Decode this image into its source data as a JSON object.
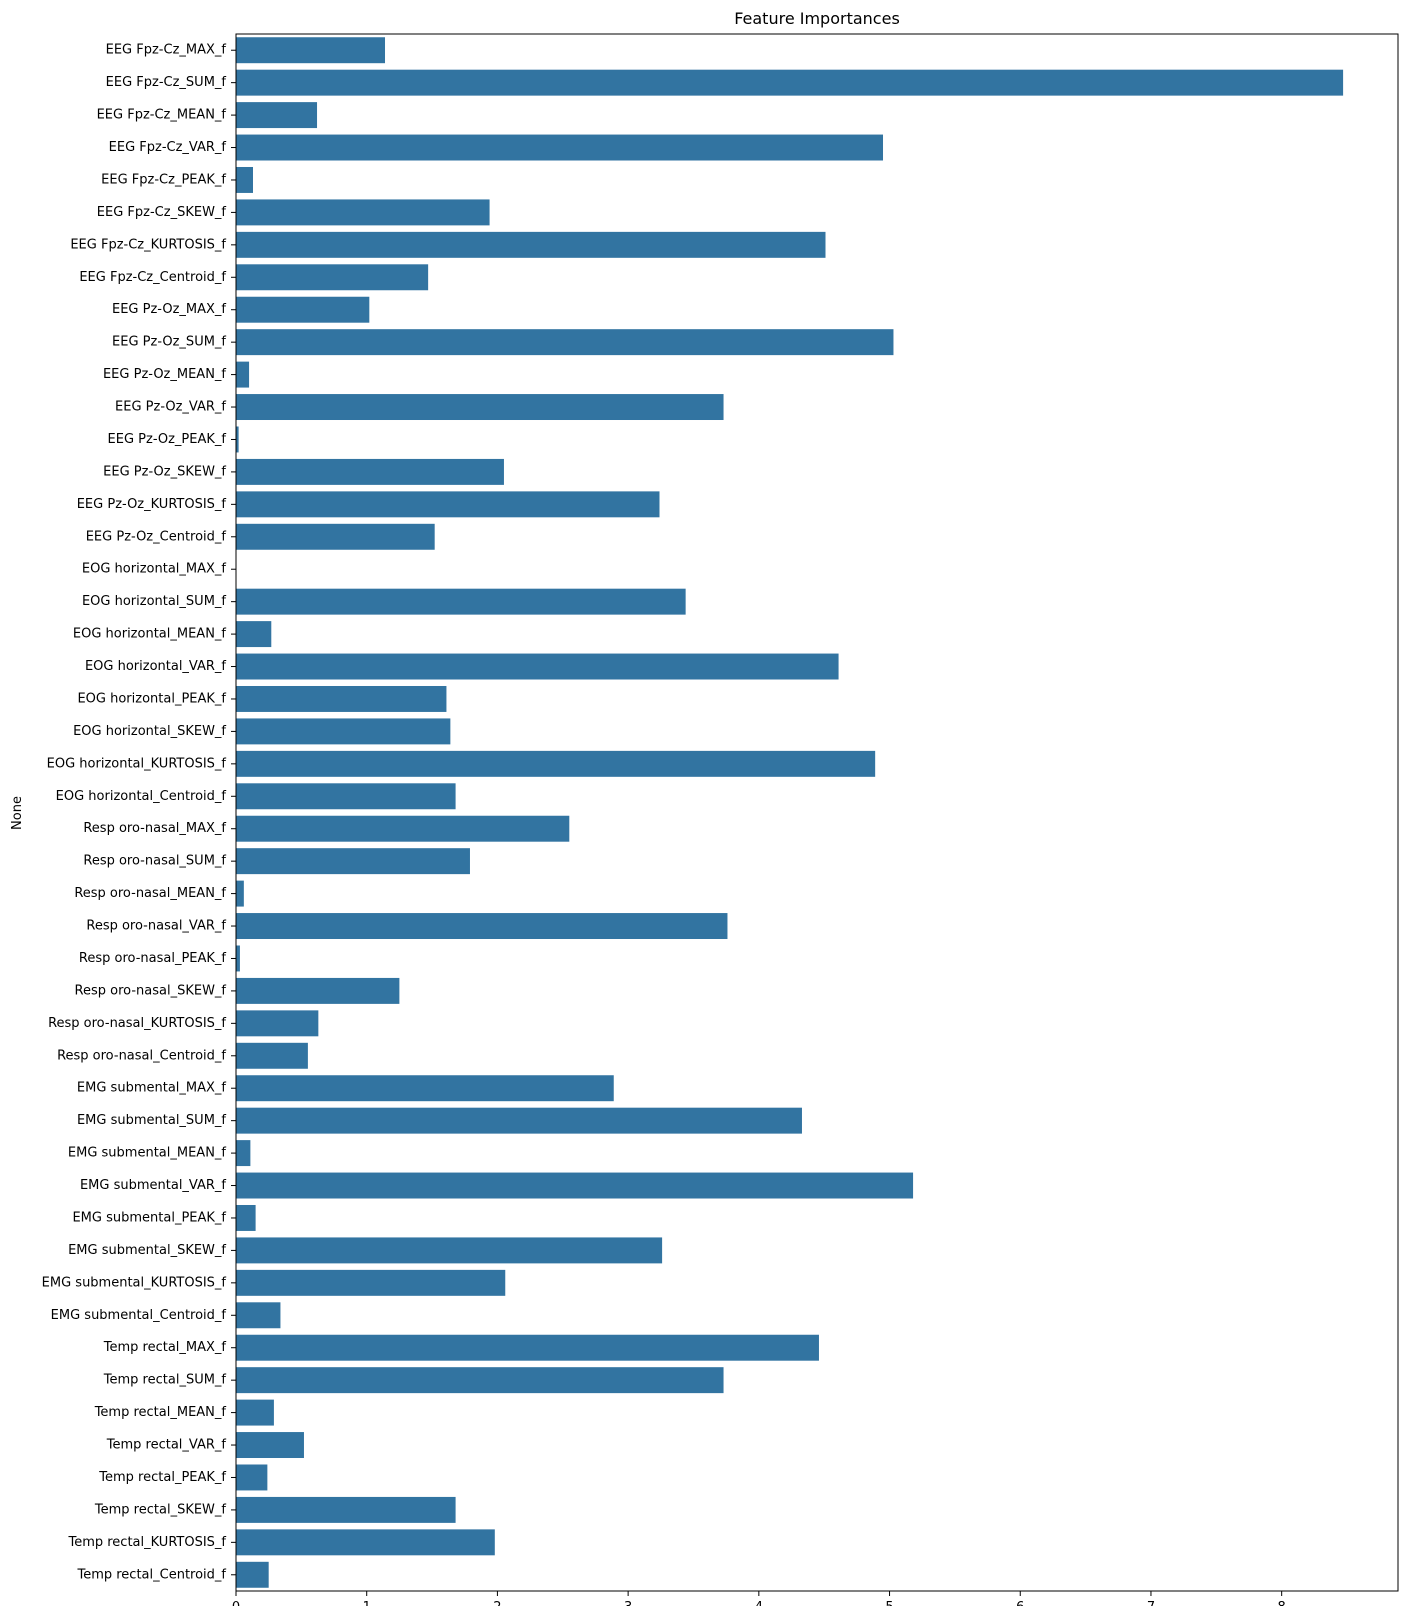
{
  "chart_data": {
    "type": "bar",
    "orientation": "horizontal",
    "title": "Feature Importances",
    "xlabel": "",
    "ylabel": "None",
    "xlim": [
      0,
      8.89
    ],
    "xticks": [
      0,
      1,
      2,
      3,
      4,
      5,
      6,
      7,
      8
    ],
    "grid": false,
    "bar_color": "#3274a1",
    "categories": [
      "EEG Fpz-Cz_MAX_f",
      "EEG Fpz-Cz_SUM_f",
      "EEG Fpz-Cz_MEAN_f",
      "EEG Fpz-Cz_VAR_f",
      "EEG Fpz-Cz_PEAK_f",
      "EEG Fpz-Cz_SKEW_f",
      "EEG Fpz-Cz_KURTOSIS_f",
      "EEG Fpz-Cz_Centroid_f",
      "EEG Pz-Oz_MAX_f",
      "EEG Pz-Oz_SUM_f",
      "EEG Pz-Oz_MEAN_f",
      "EEG Pz-Oz_VAR_f",
      "EEG Pz-Oz_PEAK_f",
      "EEG Pz-Oz_SKEW_f",
      "EEG Pz-Oz_KURTOSIS_f",
      "EEG Pz-Oz_Centroid_f",
      "EOG horizontal_MAX_f",
      "EOG horizontal_SUM_f",
      "EOG horizontal_MEAN_f",
      "EOG horizontal_VAR_f",
      "EOG horizontal_PEAK_f",
      "EOG horizontal_SKEW_f",
      "EOG horizontal_KURTOSIS_f",
      "EOG horizontal_Centroid_f",
      "Resp oro-nasal_MAX_f",
      "Resp oro-nasal_SUM_f",
      "Resp oro-nasal_MEAN_f",
      "Resp oro-nasal_VAR_f",
      "Resp oro-nasal_PEAK_f",
      "Resp oro-nasal_SKEW_f",
      "Resp oro-nasal_KURTOSIS_f",
      "Resp oro-nasal_Centroid_f",
      "EMG submental_MAX_f",
      "EMG submental_SUM_f",
      "EMG submental_MEAN_f",
      "EMG submental_VAR_f",
      "EMG submental_PEAK_f",
      "EMG submental_SKEW_f",
      "EMG submental_KURTOSIS_f",
      "EMG submental_Centroid_f",
      "Temp rectal_MAX_f",
      "Temp rectal_SUM_f",
      "Temp rectal_MEAN_f",
      "Temp rectal_VAR_f",
      "Temp rectal_PEAK_f",
      "Temp rectal_SKEW_f",
      "Temp rectal_KURTOSIS_f",
      "Temp rectal_Centroid_f"
    ],
    "values": [
      1.14,
      8.47,
      0.62,
      4.95,
      0.13,
      1.94,
      4.51,
      1.47,
      1.02,
      5.03,
      0.1,
      3.73,
      0.02,
      2.05,
      3.24,
      1.52,
      0.0,
      3.44,
      0.27,
      4.61,
      1.61,
      1.64,
      4.89,
      1.68,
      2.55,
      1.79,
      0.06,
      3.76,
      0.03,
      1.25,
      0.63,
      0.55,
      2.89,
      4.33,
      0.11,
      5.18,
      0.15,
      3.26,
      2.06,
      0.34,
      4.46,
      3.73,
      0.29,
      0.52,
      0.24,
      1.68,
      1.98,
      0.25
    ]
  }
}
